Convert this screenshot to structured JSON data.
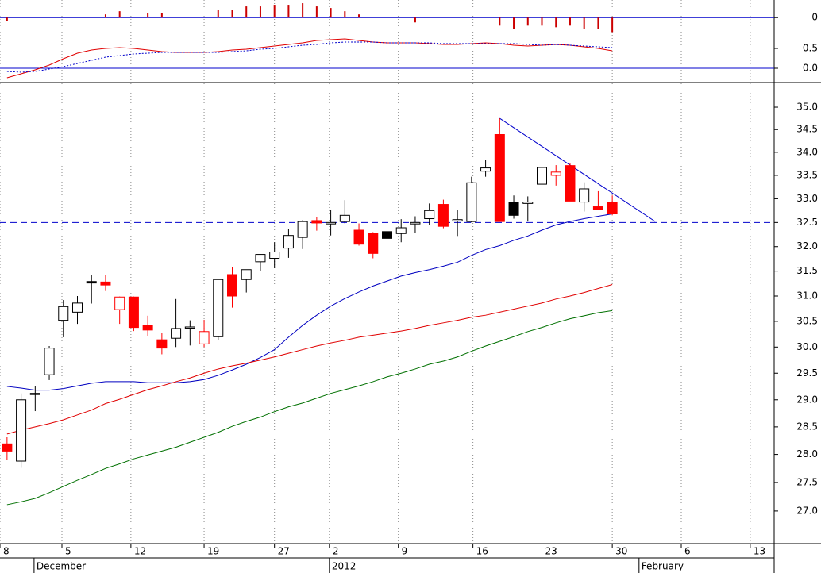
{
  "chart_data": {
    "type": "candlestick",
    "log_scale": true,
    "x": [
      0,
      1,
      2,
      3,
      4,
      5,
      6,
      7,
      8,
      9,
      10,
      11,
      12,
      13,
      14,
      15,
      16,
      17,
      18,
      19,
      20,
      21,
      22,
      23,
      24,
      25,
      26,
      27,
      28,
      29,
      30,
      31,
      32,
      33,
      34,
      35,
      36,
      37,
      38,
      39,
      40,
      41,
      42,
      43
    ],
    "open": [
      28.19,
      27.88,
      29.1,
      29.47,
      30.52,
      30.68,
      31.26,
      31.28,
      30.73,
      30.98,
      30.42,
      30.14,
      30.17,
      30.37,
      30.06,
      30.2,
      31.43,
      31.33,
      31.69,
      31.76,
      31.97,
      32.19,
      32.54,
      32.47,
      32.52,
      32.34,
      32.27,
      32.17,
      32.27,
      32.47,
      32.58,
      32.88,
      32.53,
      32.52,
      33.59,
      34.39,
      32.65,
      32.9,
      33.31,
      33.5,
      33.71,
      32.93,
      32.83,
      32.92
    ],
    "high": [
      28.31,
      29.12,
      29.26,
      30.02,
      30.92,
      31.0,
      31.42,
      31.43,
      30.99,
      30.99,
      30.61,
      30.27,
      30.94,
      30.52,
      30.53,
      31.35,
      31.58,
      31.53,
      31.84,
      32.09,
      32.36,
      32.55,
      32.62,
      32.77,
      32.97,
      32.48,
      32.3,
      32.36,
      32.57,
      32.63,
      32.9,
      32.98,
      32.77,
      33.47,
      33.83,
      34.75,
      33.07,
      33.05,
      33.76,
      33.72,
      33.76,
      33.35,
      33.16,
      33.07
    ],
    "low": [
      27.9,
      27.76,
      28.79,
      29.37,
      30.19,
      30.45,
      30.85,
      31.1,
      30.45,
      30.31,
      30.22,
      29.86,
      30.0,
      30.03,
      30.0,
      30.14,
      30.77,
      31.07,
      31.5,
      31.56,
      31.77,
      31.95,
      32.33,
      32.23,
      32.48,
      32.02,
      31.76,
      31.97,
      32.09,
      32.28,
      32.45,
      32.38,
      32.22,
      32.5,
      33.47,
      32.52,
      32.58,
      32.52,
      33.05,
      33.28,
      32.95,
      32.73,
      32.77,
      32.65
    ],
    "close": [
      28.06,
      29.0,
      29.12,
      29.98,
      30.79,
      30.86,
      31.29,
      31.22,
      30.98,
      30.38,
      30.33,
      29.98,
      30.36,
      30.39,
      30.3,
      31.33,
      31.0,
      31.53,
      31.84,
      31.89,
      32.23,
      32.52,
      32.49,
      32.5,
      32.65,
      32.05,
      31.86,
      32.31,
      32.39,
      32.5,
      32.75,
      32.42,
      32.56,
      33.34,
      33.66,
      32.52,
      32.92,
      32.93,
      33.67,
      33.57,
      32.95,
      33.21,
      32.78,
      32.68
    ],
    "colors": [
      "#ff0000",
      "#000000",
      "#000000",
      "#000000",
      "#000000",
      "#000000",
      "#000000",
      "#ff0000",
      "#ff0000",
      "#ff0000",
      "#ff0000",
      "#ff0000",
      "#000000",
      "#000000",
      "#ff0000",
      "#000000",
      "#ff0000",
      "#000000",
      "#000000",
      "#000000",
      "#000000",
      "#000000",
      "#ff0000",
      "#000000",
      "#000000",
      "#ff0000",
      "#ff0000",
      "#000000",
      "#000000",
      "#000000",
      "#000000",
      "#ff0000",
      "#000000",
      "#000000",
      "#000000",
      "#ff0000",
      "#000000",
      "#000000",
      "#000000",
      "#ff0000",
      "#ff0000",
      "#000000",
      "#ff0000",
      "#ff0000"
    ],
    "hollow": [
      false,
      true,
      false,
      true,
      true,
      true,
      false,
      false,
      true,
      false,
      false,
      false,
      true,
      true,
      true,
      true,
      false,
      true,
      true,
      true,
      true,
      true,
      false,
      true,
      true,
      false,
      false,
      false,
      true,
      true,
      true,
      false,
      true,
      true,
      true,
      false,
      false,
      true,
      true,
      true,
      false,
      true,
      false,
      false
    ],
    "overlays": [
      {
        "color": "#0000c0",
        "values": [
          29.25,
          29.22,
          29.18,
          29.18,
          29.21,
          29.26,
          29.31,
          29.34,
          29.34,
          29.34,
          29.32,
          29.32,
          29.32,
          29.34,
          29.38,
          29.46,
          29.56,
          29.67,
          29.8,
          29.95,
          30.19,
          30.42,
          30.62,
          30.8,
          30.95,
          31.08,
          31.2,
          31.3,
          31.4,
          31.47,
          31.53,
          31.6,
          31.68,
          31.82,
          31.94,
          32.02,
          32.13,
          32.22,
          32.34,
          32.45,
          32.52,
          32.58,
          32.63,
          32.68
        ]
      },
      {
        "color": "#e00000",
        "values": [
          28.37,
          28.44,
          28.5,
          28.56,
          28.63,
          28.72,
          28.81,
          28.93,
          29.01,
          29.1,
          29.19,
          29.26,
          29.34,
          29.41,
          29.5,
          29.58,
          29.64,
          29.69,
          29.75,
          29.81,
          29.88,
          29.95,
          30.02,
          30.08,
          30.13,
          30.19,
          30.23,
          30.27,
          30.31,
          30.36,
          30.42,
          30.47,
          30.52,
          30.58,
          30.62,
          30.68,
          30.74,
          30.8,
          30.86,
          30.94,
          31.0,
          31.07,
          31.15,
          31.23
        ]
      },
      {
        "color": "#007000",
        "values": [
          27.11,
          27.16,
          27.22,
          27.32,
          27.43,
          27.54,
          27.64,
          27.75,
          27.83,
          27.92,
          27.99,
          28.06,
          28.13,
          28.22,
          28.31,
          28.4,
          28.51,
          28.6,
          28.68,
          28.78,
          28.87,
          28.94,
          29.03,
          29.12,
          29.19,
          29.26,
          29.34,
          29.43,
          29.5,
          29.58,
          29.67,
          29.73,
          29.81,
          29.92,
          30.02,
          30.11,
          30.2,
          30.3,
          30.38,
          30.47,
          30.55,
          30.61,
          30.67,
          30.71
        ]
      }
    ],
    "lines": [
      {
        "color": "#0000cc",
        "dashed": true,
        "points": [
          [
            -0.5,
            32.5
          ],
          [
            54.5,
            32.5
          ]
        ]
      },
      {
        "color": "#0000cc",
        "dashed": false,
        "points": [
          [
            35,
            34.75
          ],
          [
            46.05,
            32.52
          ]
        ]
      }
    ],
    "xlim": [
      -0.5,
      54.5
    ],
    "xticks": [
      {
        "value": -0.5,
        "label": "8"
      },
      {
        "value": 3.9,
        "label": "5"
      },
      {
        "value": 8.8,
        "label": "12"
      },
      {
        "value": 14,
        "label": "19"
      },
      {
        "value": 19,
        "label": "27"
      },
      {
        "value": 22.9,
        "label": "2"
      },
      {
        "value": 27.8,
        "label": "9"
      },
      {
        "value": 33.1,
        "label": "16"
      },
      {
        "value": 38,
        "label": "23"
      },
      {
        "value": 43,
        "label": "30"
      },
      {
        "value": 47.9,
        "label": "6"
      },
      {
        "value": 52.8,
        "label": "13"
      }
    ],
    "month_ticks": [
      {
        "value": 1.92,
        "label": "December"
      },
      {
        "value": 22.9,
        "label": "2012"
      },
      {
        "value": 44.9,
        "label": "February"
      }
    ],
    "ylim": [
      26.44,
      35.54
    ],
    "yticks": [
      {
        "value": 35,
        "label": "35.0"
      },
      34.5,
      {
        "value": 34,
        "label": "34.0"
      },
      33.5,
      {
        "value": 33,
        "label": "33.0"
      },
      32.5,
      {
        "value": 32,
        "label": "32.0"
      },
      31.5,
      {
        "value": 31,
        "label": "31.0"
      },
      30.5,
      {
        "value": 30,
        "label": "30.0"
      },
      29.5,
      {
        "value": 29,
        "label": "29.0"
      },
      28.5,
      {
        "value": 28,
        "label": "28.0"
      },
      27.5,
      {
        "value": 27,
        "label": "27.0"
      }
    ],
    "grid": true,
    "macd": {
      "ylim": [
        -0.34,
        1.72
      ],
      "yticks": [
        0.5,
        {
          "value": 0,
          "label": "0.0"
        }
      ],
      "y2lim": [
        -0.4,
        0.11
      ],
      "y2ticks": [
        0
      ],
      "series": [
        {
          "color": "#e00000",
          "style": "solid",
          "values": [
            -0.24,
            -0.14,
            -0.04,
            0.08,
            0.24,
            0.38,
            0.46,
            0.5,
            0.52,
            0.5,
            0.46,
            0.42,
            0.4,
            0.4,
            0.4,
            0.42,
            0.46,
            0.48,
            0.52,
            0.56,
            0.6,
            0.64,
            0.7,
            0.72,
            0.74,
            0.7,
            0.66,
            0.64,
            0.64,
            0.64,
            0.62,
            0.6,
            0.6,
            0.62,
            0.64,
            0.62,
            0.58,
            0.56,
            0.58,
            0.6,
            0.58,
            0.54,
            0.5,
            0.44
          ]
        },
        {
          "color": "#0000cc",
          "style": "dotted",
          "values": [
            -0.08,
            -0.1,
            -0.08,
            -0.02,
            0.04,
            0.12,
            0.2,
            0.28,
            0.32,
            0.36,
            0.38,
            0.4,
            0.4,
            0.4,
            0.4,
            0.4,
            0.42,
            0.44,
            0.48,
            0.5,
            0.54,
            0.58,
            0.6,
            0.64,
            0.66,
            0.66,
            0.66,
            0.64,
            0.64,
            0.64,
            0.64,
            0.62,
            0.62,
            0.62,
            0.62,
            0.62,
            0.62,
            0.6,
            0.58,
            0.6,
            0.58,
            0.56,
            0.54,
            0.52
          ]
        },
        {
          "type": "bar",
          "axis": "y2",
          "color": "#cc0000",
          "values": [
            -0.02,
            0,
            0,
            0,
            0,
            0,
            0,
            0.02,
            0.04,
            0,
            0.03,
            0.03,
            0,
            0,
            0,
            0.05,
            0.05,
            0.07,
            0.07,
            0.08,
            0.08,
            0.09,
            0.07,
            0.06,
            0.04,
            0.02,
            0,
            0,
            0,
            -0.03,
            0,
            0,
            0,
            0,
            0,
            -0.05,
            -0.07,
            -0.05,
            -0.05,
            -0.06,
            -0.05,
            -0.07,
            -0.07,
            -0.09
          ]
        }
      ]
    }
  }
}
